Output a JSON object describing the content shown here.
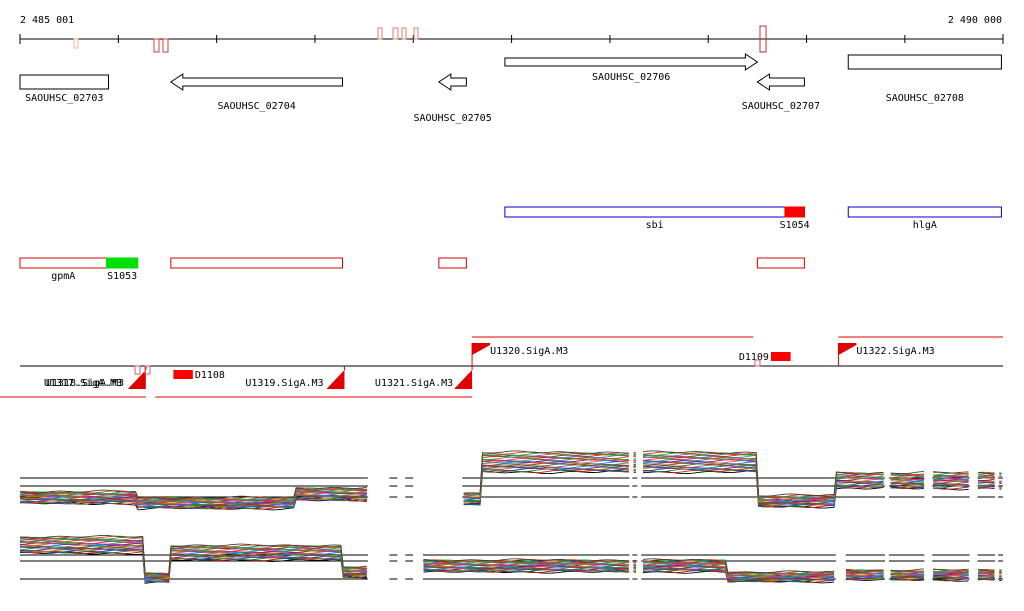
{
  "ruler": {
    "start_label": "2 485 001",
    "end_label": "2 490 000",
    "start_bp": 2485001,
    "end_bp": 2490000
  },
  "genes": [
    {
      "label": "SAOUHSC_02703",
      "start": 2485001,
      "end": 2485451,
      "strand": "none",
      "row": 0
    },
    {
      "label": "SAOUHSC_02704",
      "start": 2485768,
      "end": 2486641,
      "strand": "minus",
      "row": 0
    },
    {
      "label": "SAOUHSC_02705",
      "start": 2487131,
      "end": 2487271,
      "strand": "minus",
      "row": 0
    },
    {
      "label": "SAOUHSC_02706",
      "start": 2487467,
      "end": 2488751,
      "strand": "plus",
      "row": 0
    },
    {
      "label": "SAOUHSC_02707",
      "start": 2488751,
      "end": 2488990,
      "strand": "minus",
      "row": 0
    },
    {
      "label": "SAOUHSC_02708",
      "start": 2489213,
      "end": 2489992,
      "strand": "none",
      "row": 0
    }
  ],
  "features": {
    "blue": [
      {
        "label": "sbi",
        "start": 2487467,
        "end": 2488990
      },
      {
        "label": "hlgA",
        "start": 2489213,
        "end": 2489992
      }
    ],
    "red": [
      {
        "label": "gpmA",
        "start": 2485001,
        "end": 2485441
      },
      {
        "label": "",
        "start": 2485768,
        "end": 2486641
      },
      {
        "label": "",
        "start": 2487131,
        "end": 2487271
      },
      {
        "label": "",
        "start": 2488751,
        "end": 2488990
      }
    ],
    "srna": [
      {
        "label": "S1053",
        "start": 2485441,
        "end": 2485600,
        "color": "#00e000"
      },
      {
        "label": "S1054",
        "start": 2488891,
        "end": 2488990,
        "color": "#ff0000"
      }
    ]
  },
  "segments": {
    "upper": [
      {
        "label": "U1320.SigA.M3",
        "start": 2487300,
        "end": 2488730
      },
      {
        "label": "U1322.SigA.M3",
        "start": 2489163,
        "end": 2490000
      }
    ],
    "lower": [
      {
        "label": "U1317.SigA.M3",
        "start": 2485001,
        "end": 2485641
      },
      {
        "label": "U1318.SigA.M3",
        "start": 2485001,
        "end": 2485641
      },
      {
        "label": "U1319.SigA.M3",
        "start": 2485791,
        "end": 2486651
      },
      {
        "label": "U1321.SigA.M3",
        "start": 2486751,
        "end": 2487300
      }
    ],
    "deletions": [
      {
        "label": "D1108",
        "start": 2485781,
        "end": 2485880,
        "side": "lower"
      },
      {
        "label": "D1109",
        "start": 2488820,
        "end": 2488920,
        "side": "upper"
      }
    ]
  },
  "expression": {
    "series_count": 24,
    "strands": [
      {
        "name": "plus",
        "levels": [
          {
            "start": 2485001,
            "end": 2485600,
            "level": 0.3
          },
          {
            "start": 2485600,
            "end": 2486400,
            "level": 0.22
          },
          {
            "start": 2486400,
            "end": 2486770,
            "level": 0.35
          },
          {
            "start": 2487250,
            "end": 2487350,
            "level": 0.28
          },
          {
            "start": 2487350,
            "end": 2488750,
            "level": 0.82
          },
          {
            "start": 2488750,
            "end": 2489150,
            "level": 0.25
          },
          {
            "start": 2489150,
            "end": 2490000,
            "level": 0.55
          }
        ],
        "gaps": [
          [
            2486770,
            2486880
          ],
          [
            2486920,
            2486960
          ],
          [
            2487000,
            2487250
          ],
          [
            2488100,
            2488115
          ],
          [
            2488140,
            2488160
          ],
          [
            2489400,
            2489420
          ],
          [
            2489600,
            2489640
          ],
          [
            2489830,
            2489870
          ],
          [
            2489960,
            2489975
          ]
        ]
      },
      {
        "name": "minus",
        "levels": [
          {
            "start": 2485001,
            "end": 2485630,
            "level": 0.75
          },
          {
            "start": 2485630,
            "end": 2485760,
            "level": 0.2
          },
          {
            "start": 2485760,
            "end": 2486640,
            "level": 0.62
          },
          {
            "start": 2486640,
            "end": 2486770,
            "level": 0.3
          },
          {
            "start": 2487050,
            "end": 2488600,
            "level": 0.4
          },
          {
            "start": 2488600,
            "end": 2489150,
            "level": 0.22
          },
          {
            "start": 2489150,
            "end": 2490000,
            "level": 0.25
          }
        ],
        "gaps": [
          [
            2486770,
            2486880
          ],
          [
            2486920,
            2486960
          ],
          [
            2487000,
            2487050
          ],
          [
            2488100,
            2488115
          ],
          [
            2488140,
            2488160
          ],
          [
            2489150,
            2489200
          ],
          [
            2489400,
            2489420
          ],
          [
            2489600,
            2489640
          ],
          [
            2489830,
            2489870
          ],
          [
            2489960,
            2489975
          ]
        ]
      }
    ]
  },
  "colors": {
    "gene_outline": "#000000",
    "red_feature": "#e00000",
    "blue_feature": "#0000c0",
    "segment": "#e00000",
    "guide": "#000000"
  }
}
